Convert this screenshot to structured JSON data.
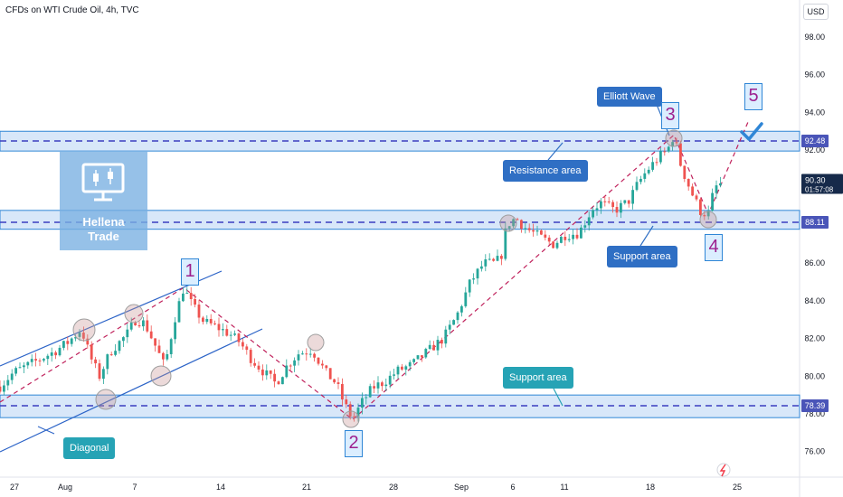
{
  "header": {
    "title": "CFDs on WTI Crude Oil, 4h, TVC",
    "currency": "USD"
  },
  "colors": {
    "up": "#26a69a",
    "down": "#ef5350",
    "band": "#2f86d6",
    "wave_line": "#c0225c",
    "accent": "#2962ff"
  },
  "chart_data": {
    "type": "candlestick",
    "x_ticks": [
      "27",
      "Aug",
      "7",
      "14",
      "21",
      "28",
      "Sep",
      "6",
      "11",
      "18",
      "25"
    ],
    "y_ticks": [
      "98.00",
      "96.00",
      "94.00",
      "92.00",
      "90.00",
      "88.00",
      "86.00",
      "84.00",
      "82.00",
      "80.00",
      "78.00",
      "76.00"
    ],
    "ylim": [
      75.3,
      99.5
    ],
    "path": [
      [
        -5,
        79.2
      ],
      [
        15,
        80.2
      ],
      [
        40,
        80.8
      ],
      [
        60,
        81.3
      ],
      [
        75,
        81.8
      ],
      [
        90,
        82.5
      ],
      [
        100,
        81.0
      ],
      [
        110,
        80.0
      ],
      [
        122,
        81.3
      ],
      [
        140,
        82.2
      ],
      [
        150,
        83.0
      ],
      [
        160,
        82.8
      ],
      [
        170,
        81.8
      ],
      [
        182,
        80.5
      ],
      [
        194,
        83.2
      ],
      [
        203,
        84.7
      ],
      [
        212,
        83.8
      ],
      [
        225,
        82.9
      ],
      [
        240,
        82.6
      ],
      [
        255,
        82.2
      ],
      [
        265,
        81.8
      ],
      [
        278,
        80.9
      ],
      [
        290,
        80.3
      ],
      [
        305,
        79.6
      ],
      [
        318,
        80.6
      ],
      [
        330,
        81.2
      ],
      [
        345,
        81.4
      ],
      [
        360,
        80.2
      ],
      [
        372,
        79.6
      ],
      [
        380,
        78.6
      ],
      [
        390,
        77.7
      ],
      [
        400,
        78.6
      ],
      [
        412,
        79.4
      ],
      [
        425,
        79.7
      ],
      [
        440,
        80.3
      ],
      [
        455,
        80.6
      ],
      [
        470,
        81.2
      ],
      [
        490,
        82.0
      ],
      [
        505,
        83.2
      ],
      [
        520,
        85.0
      ],
      [
        535,
        86.0
      ],
      [
        548,
        86.0
      ],
      [
        555,
        86.5
      ],
      [
        560,
        88.0
      ],
      [
        570,
        88.4
      ],
      [
        580,
        87.9
      ],
      [
        590,
        87.6
      ],
      [
        600,
        87.3
      ],
      [
        612,
        87.0
      ],
      [
        625,
        87.5
      ],
      [
        640,
        87.6
      ],
      [
        655,
        88.9
      ],
      [
        665,
        89.2
      ],
      [
        680,
        88.8
      ],
      [
        695,
        89.3
      ],
      [
        705,
        90.2
      ],
      [
        715,
        90.9
      ],
      [
        728,
        91.6
      ],
      [
        738,
        92.0
      ],
      [
        745,
        92.8
      ],
      [
        752,
        91.3
      ],
      [
        758,
        90.5
      ],
      [
        765,
        89.7
      ],
      [
        775,
        88.7
      ],
      [
        783,
        88.6
      ],
      [
        790,
        90.0
      ],
      [
        800,
        90.3
      ]
    ],
    "current_price": "90.30",
    "countdown": "01:57:08",
    "levels": [
      {
        "value": "92.48",
        "name": "Resistance area"
      },
      {
        "value": "88.11",
        "name": "Support area"
      },
      {
        "value": "78.39",
        "name": "Support area"
      }
    ],
    "waves": [
      {
        "label": "1",
        "x": 203,
        "price": 84.7
      },
      {
        "label": "2",
        "x": 390,
        "price": 77.7
      },
      {
        "label": "3",
        "x": 745,
        "price": 92.8
      },
      {
        "label": "4",
        "x": 783,
        "price": 88.6
      },
      {
        "label": "5",
        "x": 828,
        "price": 93.6
      }
    ],
    "annotations": [
      "Elliott Wave",
      "Resistance area",
      "Support area",
      "Support area",
      "Diagonal"
    ],
    "logo_text": [
      "Hellena",
      "Trade"
    ]
  }
}
